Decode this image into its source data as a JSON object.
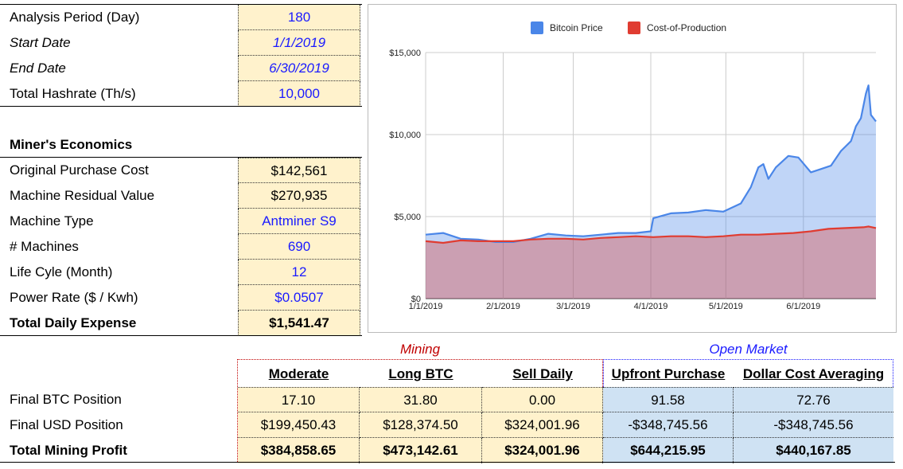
{
  "inputs": {
    "analysis_period": {
      "label": "Analysis Period (Day)",
      "value": "180"
    },
    "start_date": {
      "label": "Start Date",
      "value": "1/1/2019"
    },
    "end_date": {
      "label": "End Date",
      "value": "6/30/2019"
    },
    "total_hashrate": {
      "label": "Total Hashrate (Th/s)",
      "value": "10,000"
    }
  },
  "miners_economics": {
    "heading": "Miner's Economics",
    "purchase_cost": {
      "label": "Original Purchase Cost",
      "value": "$142,561"
    },
    "residual_value": {
      "label": "Machine Residual Value",
      "value": "$270,935"
    },
    "machine_type": {
      "label": "Machine Type",
      "value": "Antminer S9"
    },
    "machines": {
      "label": "# Machines",
      "value": "690"
    },
    "life_cycle": {
      "label": "Life Cyle (Month)",
      "value": "12"
    },
    "power_rate": {
      "label": "Power Rate ($ / Kwh)",
      "value": "$0.0507"
    },
    "daily_expense": {
      "label": "Total Daily Expense",
      "value": "$1,541.47"
    }
  },
  "results": {
    "group_mining": "Mining",
    "group_open_market": "Open Market",
    "columns": [
      "Moderate",
      "Long BTC",
      "Sell Daily",
      "Upfront Purchase",
      "Dollar Cost Averaging"
    ],
    "rows": [
      {
        "label": "Final BTC Position",
        "values": [
          "17.10",
          "31.80",
          "0.00",
          "91.58",
          "72.76"
        ]
      },
      {
        "label": "Final USD Position",
        "values": [
          "$199,450.43",
          "$128,374.50",
          "$324,001.96",
          "-$348,745.56",
          "-$348,745.56"
        ]
      },
      {
        "label": "Total Mining Profit",
        "values": [
          "$384,858.65",
          "$473,142.61",
          "$324,001.96",
          "$644,215.95",
          "$440,167.85"
        ]
      }
    ]
  },
  "colors": {
    "input_fill": "#fff2cc",
    "market_fill": "#cfe2f3",
    "input_text": "#1a1aff",
    "mining_label": "#c00000",
    "open_market_label": "#1a1aff",
    "bitcoin_price": "#4a86e8",
    "cost_of_production": "#e03c31"
  },
  "chart_data": {
    "type": "area",
    "legend_position": "top",
    "grid": true,
    "series": [
      {
        "name": "Bitcoin Price",
        "x": [
          "1/1/2019",
          "1/8/2019",
          "1/15/2019",
          "1/22/2019",
          "1/29/2019",
          "2/5/2019",
          "2/12/2019",
          "2/19/2019",
          "2/26/2019",
          "3/5/2019",
          "3/12/2019",
          "3/19/2019",
          "3/26/2019",
          "4/1/2019",
          "4/2/2019",
          "4/9/2019",
          "4/16/2019",
          "4/23/2019",
          "4/30/2019",
          "5/7/2019",
          "5/11/2019",
          "5/14/2019",
          "5/16/2019",
          "5/18/2019",
          "5/21/2019",
          "5/26/2019",
          "5/30/2019",
          "6/4/2019",
          "6/8/2019",
          "6/12/2019",
          "6/16/2019",
          "6/20/2019",
          "6/22/2019",
          "6/24/2019",
          "6/26/2019",
          "6/27/2019",
          "6/28/2019",
          "6/30/2019"
        ],
        "values": [
          3900,
          4000,
          3650,
          3600,
          3450,
          3450,
          3650,
          3950,
          3850,
          3800,
          3900,
          4000,
          4000,
          4100,
          4900,
          5200,
          5250,
          5400,
          5300,
          5800,
          6800,
          8000,
          8200,
          7300,
          8000,
          8700,
          8600,
          7700,
          7900,
          8100,
          9000,
          9600,
          10500,
          11000,
          12500,
          13000,
          11200,
          10800
        ]
      },
      {
        "name": "Cost-of-Production",
        "x": [
          "1/1/2019",
          "1/8/2019",
          "1/15/2019",
          "1/22/2019",
          "1/29/2019",
          "2/5/2019",
          "2/12/2019",
          "2/19/2019",
          "2/26/2019",
          "3/5/2019",
          "3/12/2019",
          "3/19/2019",
          "3/26/2019",
          "4/2/2019",
          "4/9/2019",
          "4/16/2019",
          "4/23/2019",
          "4/30/2019",
          "5/7/2019",
          "5/14/2019",
          "5/21/2019",
          "5/28/2019",
          "6/4/2019",
          "6/11/2019",
          "6/18/2019",
          "6/25/2019",
          "6/27/2019",
          "6/30/2019"
        ],
        "values": [
          3500,
          3400,
          3550,
          3500,
          3500,
          3500,
          3600,
          3650,
          3650,
          3600,
          3700,
          3750,
          3800,
          3750,
          3800,
          3800,
          3750,
          3800,
          3900,
          3900,
          3950,
          4000,
          4100,
          4250,
          4300,
          4350,
          4400,
          4300
        ]
      }
    ],
    "x_ticks": [
      "1/1/2019",
      "2/1/2019",
      "3/1/2019",
      "4/1/2019",
      "5/1/2019",
      "6/1/2019"
    ],
    "y_ticks": [
      "$0",
      "$5,000",
      "$10,000",
      "$15,000"
    ],
    "ylim": [
      0,
      15000
    ]
  }
}
